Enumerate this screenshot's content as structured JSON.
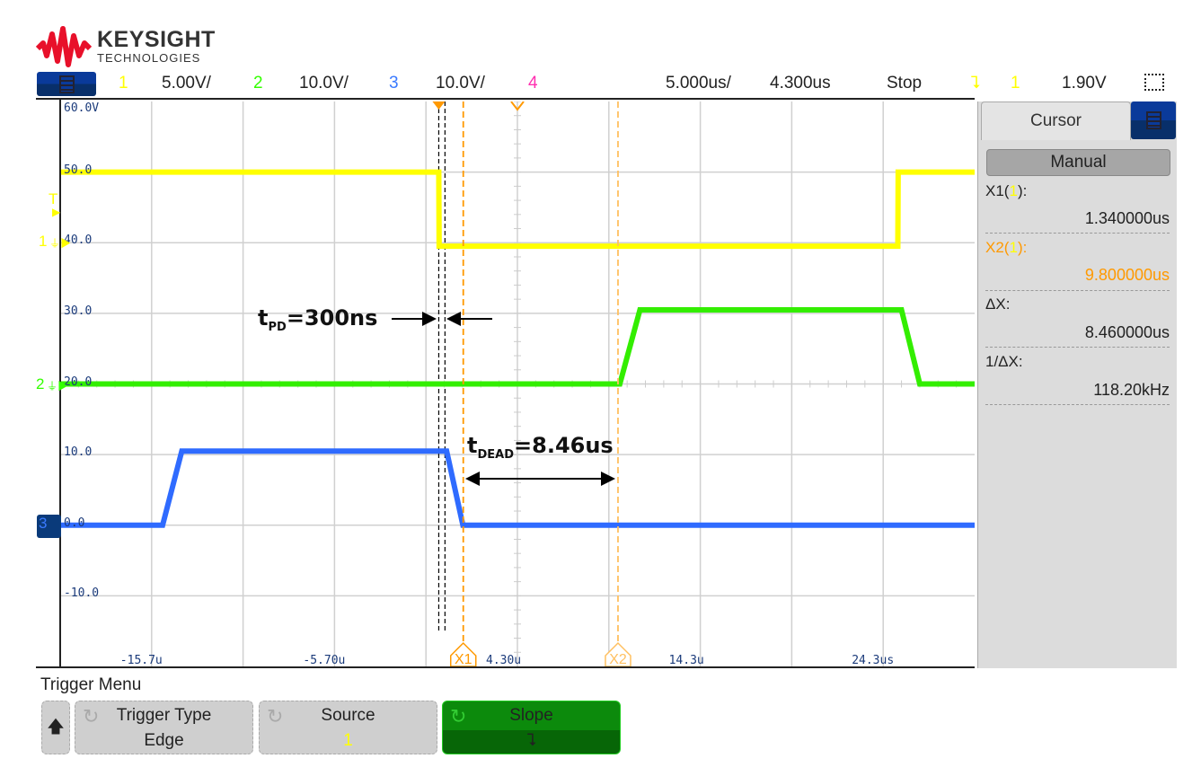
{
  "logo": {
    "brand": "KEYSIGHT",
    "sub": "TECHNOLOGIES",
    "color": "#e8102a"
  },
  "header": {
    "ch1": {
      "num": "1",
      "scale": "5.00V/",
      "color": "#ffff00"
    },
    "ch2": {
      "num": "2",
      "scale": "10.0V/",
      "color": "#33ff00"
    },
    "ch3": {
      "num": "3",
      "scale": "10.0V/",
      "color": "#3a7aff"
    },
    "ch4": {
      "num": "4",
      "color": "#ff2fb0"
    },
    "timebase": "5.000us/",
    "delay": "4.300us",
    "run_state": "Stop",
    "trigger_slope_icon": "falling-edge-icon",
    "trigger_source": "1",
    "trigger_level": "1.90V"
  },
  "markers": {
    "trigger": "T",
    "ch1": "1",
    "ch2": "2",
    "ch3": "3"
  },
  "cursor_panel": {
    "title": "Cursor",
    "mode": "Manual",
    "x1_label": "X1(",
    "x1_src": "1",
    "x1_close": "):",
    "x1_value": "1.340000us",
    "x2_label": "X2(",
    "x2_src": "1",
    "x2_close": "):",
    "x2_value": "9.800000us",
    "dx_label": "ΔX:",
    "dx_value": "8.460000us",
    "inv_dx_label": "1/ΔX:",
    "inv_dx_value": "118.20kHz"
  },
  "trigger_menu": {
    "title": "Trigger Menu",
    "keys": [
      {
        "label": "Trigger Type",
        "value": "Edge"
      },
      {
        "label": "Source",
        "value": "1"
      },
      {
        "label": "Slope",
        "value": "⮧"
      }
    ]
  },
  "annotations": {
    "tpd": {
      "t": "t",
      "sub": "PD",
      "rest": "=300ns"
    },
    "tdead": {
      "t": "t",
      "sub": "DEAD",
      "rest": "=8.46us"
    }
  },
  "chart_data": {
    "type": "line",
    "xlim": [
      -20.7,
      29.3
    ],
    "ylim": [
      -20,
      60
    ],
    "grid": true,
    "y_ticks": [
      60,
      50,
      40,
      30,
      20,
      10,
      0,
      -10
    ],
    "y_tick_labels": [
      "60.0V",
      "50.0",
      "40.0",
      "30.0",
      "20.0",
      "10.0",
      "0.0",
      "-10.0"
    ],
    "x_ticks": [
      -15.7,
      -5.7,
      4.3,
      14.3,
      24.3
    ],
    "x_tick_labels": [
      "-15.7u",
      "-5.70u",
      "4.30u",
      "14.3u",
      "24.3us"
    ],
    "cursors": [
      {
        "name": "X1",
        "x": 1.34,
        "color": "#ff9900"
      },
      {
        "name": "X2",
        "x": 9.8,
        "color": "#ffc060"
      }
    ],
    "reference_lines": [
      0.0,
      0.34
    ],
    "series": [
      {
        "channel": "1",
        "color": "#ffff00",
        "points": [
          [
            -20.7,
            50
          ],
          [
            0,
            50
          ],
          [
            0.02,
            39.5
          ],
          [
            25.1,
            39.5
          ],
          [
            25.12,
            50
          ],
          [
            29.3,
            50
          ]
        ]
      },
      {
        "channel": "2",
        "color": "#33ee00",
        "points": [
          [
            -20.7,
            20
          ],
          [
            9.9,
            20
          ],
          [
            11.0,
            30.5
          ],
          [
            25.3,
            30.5
          ],
          [
            26.3,
            20
          ],
          [
            29.3,
            20
          ]
        ]
      },
      {
        "channel": "3",
        "color": "#2f6bff",
        "points": [
          [
            -20.7,
            0
          ],
          [
            -15.1,
            0
          ],
          [
            -14.05,
            10.5
          ],
          [
            0.43,
            10.5
          ],
          [
            1.32,
            0
          ],
          [
            29.3,
            0
          ]
        ]
      }
    ]
  }
}
